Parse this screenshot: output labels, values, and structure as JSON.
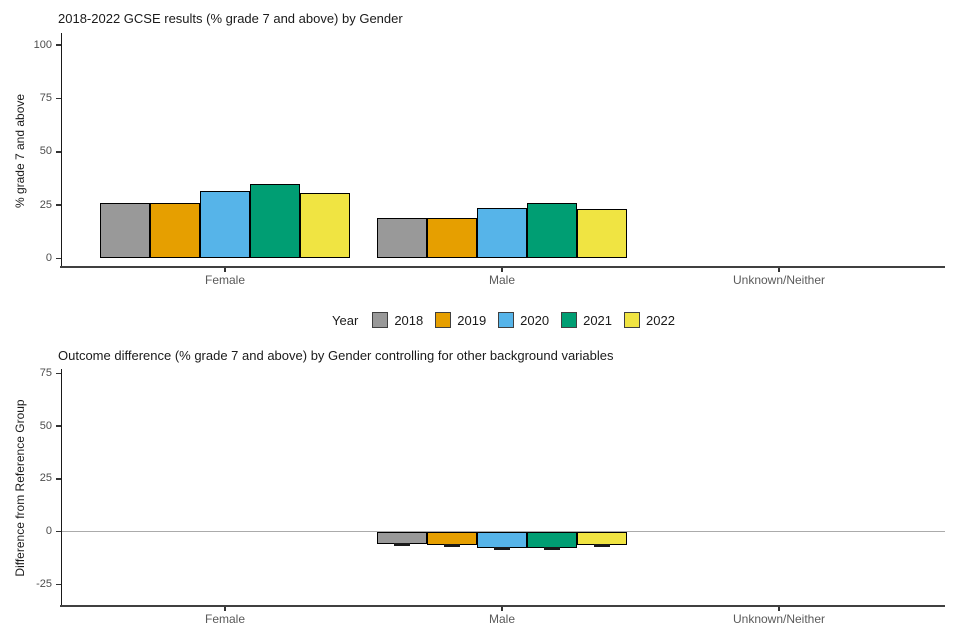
{
  "page": {
    "background": "#ffffff",
    "text_color": "#4d4d4d",
    "axis_color": "#404040",
    "bar_border_color": "#000000",
    "zero_line_color": "#ababab"
  },
  "legend": {
    "title": "Year",
    "entries": [
      {
        "label": "2018",
        "color": "#999999"
      },
      {
        "label": "2019",
        "color": "#E69F00"
      },
      {
        "label": "2020",
        "color": "#56B4E9"
      },
      {
        "label": "2021",
        "color": "#009E73"
      },
      {
        "label": "2022",
        "color": "#F0E442"
      }
    ]
  },
  "chart_data": [
    {
      "type": "bar",
      "title": "2018-2022 GCSE results (% grade 7 and above) by Gender",
      "xlabel": "",
      "ylabel": "% grade 7 and above",
      "categories": [
        "Female",
        "Male",
        "Unknown/Neither"
      ],
      "series": [
        {
          "name": "2018",
          "color": "#999999",
          "values": [
            25.9,
            19.0,
            null
          ]
        },
        {
          "name": "2019",
          "color": "#E69F00",
          "values": [
            26.1,
            19.2,
            null
          ]
        },
        {
          "name": "2020",
          "color": "#56B4E9",
          "values": [
            31.8,
            23.8,
            null
          ]
        },
        {
          "name": "2021",
          "color": "#009E73",
          "values": [
            34.9,
            26.0,
            null
          ]
        },
        {
          "name": "2022",
          "color": "#F0E442",
          "values": [
            30.6,
            23.1,
            null
          ]
        }
      ],
      "yticks": [
        0,
        25,
        50,
        75,
        100
      ],
      "ylim": [
        0,
        100
      ],
      "grid": false,
      "legend_position": "bottom",
      "error_caps": false,
      "zero_line": false
    },
    {
      "type": "bar",
      "title": "Outcome difference (% grade 7 and above) by Gender controlling for other background variables",
      "xlabel": "",
      "ylabel": "Difference from Reference Group",
      "categories": [
        "Female",
        "Male",
        "Unknown/Neither"
      ],
      "series": [
        {
          "name": "2018",
          "color": "#999999",
          "values": [
            null,
            -5.9,
            null
          ]
        },
        {
          "name": "2019",
          "color": "#E69F00",
          "values": [
            null,
            -6.3,
            null
          ]
        },
        {
          "name": "2020",
          "color": "#56B4E9",
          "values": [
            null,
            -7.7,
            null
          ]
        },
        {
          "name": "2021",
          "color": "#009E73",
          "values": [
            null,
            -7.9,
            null
          ]
        },
        {
          "name": "2022",
          "color": "#F0E442",
          "values": [
            null,
            -6.3,
            null
          ]
        }
      ],
      "yticks": [
        -25,
        0,
        25,
        50,
        75
      ],
      "ylim": [
        -32,
        75
      ],
      "grid": false,
      "legend_position": "none",
      "error_caps": true,
      "zero_line": true
    }
  ]
}
